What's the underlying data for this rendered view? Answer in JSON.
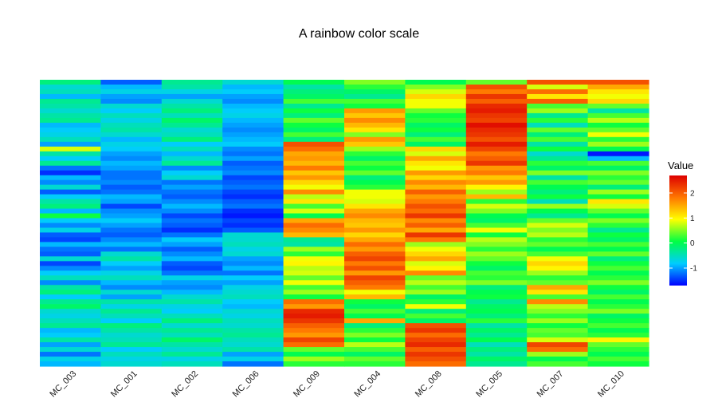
{
  "chart_data": {
    "type": "heatmap",
    "title": "A rainbow color scale",
    "xlabel": "",
    "ylabel": "",
    "columns": [
      "MC_003",
      "MC_001",
      "MC_002",
      "MC_006",
      "MC_009",
      "MC_004",
      "MC_008",
      "MC_005",
      "MC_007",
      "MC_010"
    ],
    "rows": 60,
    "value_range": [
      -1.7,
      2.7
    ],
    "legend": {
      "title": "Value",
      "ticks": [
        2,
        1,
        0,
        -1
      ],
      "placement": "right"
    },
    "color_scale": [
      "#0000ff",
      "#00ccff",
      "#00ff44",
      "#ffff00",
      "#ff7700",
      "#dd0000"
    ],
    "column_profiles": [
      {
        "name": "MC_003",
        "values": [
          -0.2,
          -0.6,
          -0.5,
          -0.9,
          -0.3,
          -0.4,
          -0.6,
          -0.4,
          -0.3,
          -0.9,
          -0.8,
          -0.7,
          -0.5,
          -1.0,
          0.8,
          -0.4,
          -0.8,
          -0.3,
          -1.2,
          -1.5,
          -0.9,
          -1.1,
          -0.6,
          -1.3,
          -0.8,
          -0.4,
          -0.2,
          -0.9,
          0.1,
          -0.8,
          -1.1,
          -0.7,
          -1.3,
          -1.4,
          -0.9,
          -1.2,
          -1.3,
          -0.6,
          -1.4,
          -1.1,
          -0.8,
          -0.5,
          -1.1,
          -0.4,
          -0.2,
          -0.8,
          -0.3,
          -0.1,
          -0.6,
          -0.7,
          -0.5,
          -0.3,
          -0.9,
          -0.8,
          -0.4,
          -1.0,
          -0.6,
          -1.2,
          -0.7,
          -0.9
        ]
      },
      {
        "name": "MC_001",
        "values": [
          -1.3,
          -0.9,
          -0.7,
          -1.0,
          -1.1,
          -0.6,
          -0.8,
          -0.5,
          -0.7,
          -0.5,
          -0.4,
          -0.6,
          -0.9,
          -0.7,
          -0.8,
          -1.0,
          -1.1,
          -0.9,
          -1.0,
          -1.2,
          -1.2,
          -1.1,
          -1.3,
          -1.2,
          -0.9,
          -1.0,
          -1.4,
          -1.1,
          -1.0,
          -0.8,
          -1.0,
          -1.2,
          -1.3,
          -1.1,
          -0.9,
          -1.2,
          -0.6,
          -0.4,
          -0.8,
          -1.0,
          -0.7,
          -0.5,
          -0.9,
          -1.1,
          -0.6,
          -1.0,
          -0.4,
          -0.7,
          -0.3,
          -0.5,
          -0.8,
          -0.2,
          -0.4,
          -0.6,
          -0.5,
          -0.3,
          -0.8,
          -0.5,
          -0.7,
          -0.6
        ]
      },
      {
        "name": "MC_002",
        "values": [
          -0.3,
          -0.4,
          -0.7,
          -1.0,
          -0.6,
          -0.4,
          -0.2,
          -0.5,
          -0.1,
          -0.3,
          -0.6,
          -0.5,
          -0.2,
          -0.8,
          -0.5,
          -0.9,
          -0.6,
          -0.3,
          -1.1,
          -0.8,
          -0.6,
          -1.2,
          -1.0,
          -1.2,
          -1.3,
          -1.1,
          -0.9,
          -1.1,
          -1.4,
          -1.2,
          -1.3,
          -1.5,
          -1.2,
          -0.8,
          -1.0,
          -1.3,
          -1.1,
          -0.9,
          -1.3,
          -1.4,
          -1.2,
          -0.7,
          -1.0,
          -1.1,
          -0.9,
          -0.6,
          -0.4,
          -0.7,
          -0.8,
          -0.5,
          -0.2,
          -0.6,
          -0.3,
          -0.5,
          -0.1,
          -0.4,
          -0.6,
          -0.3,
          -0.7,
          -0.5
        ]
      },
      {
        "name": "MC_006",
        "values": [
          -0.6,
          -0.9,
          -0.8,
          -1.0,
          -1.1,
          -0.9,
          -0.8,
          -0.7,
          -0.9,
          -1.0,
          -1.1,
          -1.0,
          -0.9,
          -0.8,
          -1.1,
          -1.2,
          -1.0,
          -1.3,
          -1.2,
          -1.1,
          -1.4,
          -1.3,
          -1.2,
          -1.4,
          -1.5,
          -1.3,
          -1.2,
          -1.5,
          -1.6,
          -1.4,
          -1.5,
          -1.3,
          -0.6,
          -0.6,
          -0.5,
          -0.7,
          -0.6,
          -1.0,
          -1.1,
          -0.9,
          -1.2,
          -0.8,
          -1.0,
          -0.7,
          -0.6,
          -0.5,
          -0.8,
          -0.9,
          -0.6,
          -0.7,
          -0.5,
          -0.6,
          -0.4,
          -0.3,
          -0.5,
          -0.6,
          -0.4,
          -1.0,
          -0.7,
          -1.2
        ]
      },
      {
        "name": "MC_009",
        "values": [
          0.0,
          -0.4,
          -0.2,
          -0.1,
          0.3,
          -0.3,
          0.1,
          -0.2,
          0.4,
          0.1,
          -0.1,
          0.3,
          -0.2,
          2.1,
          1.9,
          1.5,
          1.6,
          1.4,
          1.8,
          1.3,
          1.6,
          1.2,
          0.9,
          1.7,
          0.7,
          1.1,
          0.3,
          0.8,
          0.0,
          1.5,
          1.9,
          1.7,
          1.4,
          -0.3,
          -0.4,
          0.6,
          0.2,
          0.9,
          1.0,
          0.7,
          0.8,
          0.4,
          0.9,
          0.3,
          0.6,
          0.1,
          1.9,
          1.6,
          2.4,
          2.5,
          2.3,
          2.0,
          1.8,
          1.6,
          2.2,
          1.9,
          0.4,
          0.0,
          0.6,
          0.2
        ]
      },
      {
        "name": "MC_004",
        "values": [
          0.5,
          0.2,
          -0.1,
          -0.3,
          0.3,
          0.1,
          1.6,
          1.3,
          1.7,
          1.4,
          1.1,
          0.5,
          1.6,
          1.3,
          0.6,
          0.2,
          -0.1,
          0.3,
          0.1,
          0.4,
          -0.2,
          0.0,
          0.2,
          0.9,
          0.9,
          0.8,
          1.1,
          1.5,
          1.7,
          1.4,
          1.3,
          1.6,
          1.2,
          1.5,
          1.9,
          1.6,
          2.0,
          2.2,
          1.8,
          2.1,
          1.6,
          2.2,
          2.0,
          1.8,
          0.9,
          1.4,
          0.1,
          -0.1,
          0.3,
          0.0,
          1.5,
          -0.2,
          0.2,
          0.5,
          0.1,
          0.7,
          0.3,
          -0.1,
          0.4,
          0.2
        ]
      },
      {
        "name": "MC_008",
        "values": [
          0.0,
          0.5,
          0.8,
          1.2,
          0.9,
          0.9,
          0.4,
          0.1,
          0.2,
          -0.1,
          0.1,
          -0.2,
          0.3,
          -0.1,
          1.2,
          0.8,
          1.5,
          1.1,
          0.9,
          1.6,
          1.2,
          1.7,
          1.4,
          2.0,
          1.6,
          1.8,
          2.1,
          1.9,
          2.3,
          1.7,
          2.0,
          1.5,
          2.3,
          1.8,
          0.6,
          0.9,
          1.2,
          1.5,
          0.8,
          1.0,
          1.7,
          0.4,
          0.7,
          0.3,
          0.6,
          -0.1,
          0.2,
          0.9,
          -0.2,
          0.3,
          -0.1,
          2.1,
          2.3,
          1.9,
          2.2,
          2.4,
          2.0,
          2.3,
          2.1,
          1.9
        ]
      },
      {
        "name": "MC_005",
        "values": [
          0.4,
          2.1,
          1.8,
          2.3,
          2.0,
          2.4,
          2.5,
          2.3,
          2.2,
          2.6,
          2.4,
          2.3,
          2.1,
          2.5,
          2.2,
          1.8,
          2.0,
          2.3,
          1.6,
          1.8,
          1.3,
          1.6,
          1.0,
          0.6,
          1.4,
          0.2,
          0.8,
          0.5,
          0.0,
          -0.1,
          0.3,
          0.9,
          0.1,
          0.7,
          0.5,
          0.2,
          0.6,
          0.4,
          0.1,
          -0.1,
          0.3,
          0.2,
          0.5,
          -0.2,
          0.0,
          0.1,
          -0.3,
          -0.1,
          0.0,
          -0.2,
          0.2,
          -0.4,
          -0.1,
          -0.3,
          0.0,
          -0.5,
          -0.2,
          -0.4,
          -0.1,
          -0.3
        ]
      },
      {
        "name": "MC_007",
        "values": [
          2.1,
          0.8,
          1.9,
          1.1,
          2.0,
          0.3,
          0.6,
          -0.3,
          0.2,
          -0.5,
          0.4,
          -0.2,
          0.3,
          -0.4,
          0.1,
          -0.6,
          -0.3,
          0.2,
          -0.1,
          0.5,
          -0.4,
          0.3,
          0.0,
          -0.2,
          0.1,
          -0.5,
          0.6,
          0.0,
          -0.3,
          0.4,
          0.8,
          0.5,
          0.7,
          0.2,
          0.4,
          0.0,
          0.3,
          0.9,
          1.2,
          1.0,
          0.6,
          0.2,
          0.4,
          1.5,
          1.1,
          0.3,
          1.7,
          0.7,
          0.5,
          0.2,
          0.6,
          0.1,
          0.4,
          0.3,
          0.8,
          2.2,
          1.9,
          0.6,
          0.0,
          0.3
        ]
      },
      {
        "name": "MC_010",
        "values": [
          2.1,
          1.5,
          1.1,
          0.9,
          1.2,
          0.4,
          -0.4,
          0.3,
          0.7,
          0.1,
          0.4,
          0.9,
          0.2,
          0.6,
          0.0,
          -1.6,
          -0.9,
          0.3,
          -0.1,
          0.5,
          0.2,
          0.4,
          -0.2,
          0.6,
          0.1,
          1.1,
          0.8,
          0.4,
          0.0,
          0.5,
          0.2,
          -0.3,
          0.1,
          -0.1,
          0.3,
          0.0,
          0.4,
          -0.2,
          0.1,
          0.3,
          0.0,
          0.2,
          0.5,
          0.1,
          -0.1,
          0.3,
          0.0,
          0.2,
          0.5,
          -0.1,
          0.1,
          0.3,
          0.0,
          0.2,
          1.0,
          0.4,
          0.2,
          0.0,
          0.3,
          0.1
        ]
      }
    ]
  }
}
